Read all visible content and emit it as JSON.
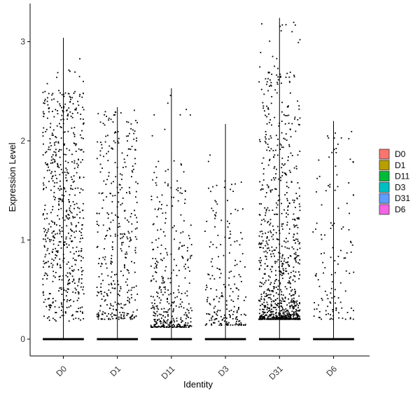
{
  "chart_data": {
    "type": "scatter",
    "subtype": "violin-jitter",
    "xlabel": "Identity",
    "ylabel": "Expression Level",
    "categories": [
      "D0",
      "D1",
      "D11",
      "D3",
      "D31",
      "D6"
    ],
    "yticks": [
      0,
      1,
      2,
      3
    ],
    "ylim": [
      -0.18,
      3.25
    ],
    "grid": false,
    "legend": {
      "position": "right",
      "entries": [
        {
          "label": "D0",
          "color": "#F8766D"
        },
        {
          "label": "D1",
          "color": "#B79F00"
        },
        {
          "label": "D11",
          "color": "#00BA38"
        },
        {
          "label": "D3",
          "color": "#00BFC4"
        },
        {
          "label": "D31",
          "color": "#619CFF"
        },
        {
          "label": "D6",
          "color": "#F564E3"
        }
      ]
    },
    "series": [
      {
        "category": "D0",
        "max": 3.04,
        "n_points": 620,
        "jitter_width": 0.38,
        "dist": [
          0.18,
          2.5,
          0.0
        ]
      },
      {
        "category": "D1",
        "max": 2.34,
        "n_points": 380,
        "jitter_width": 0.38,
        "dist": [
          0.2,
          2.3,
          0.6
        ]
      },
      {
        "category": "D11",
        "max": 2.53,
        "n_points": 380,
        "jitter_width": 0.38,
        "dist": [
          0.12,
          1.8,
          2.2
        ]
      },
      {
        "category": "D3",
        "max": 2.17,
        "n_points": 210,
        "jitter_width": 0.38,
        "dist": [
          0.14,
          1.6,
          1.4
        ]
      },
      {
        "category": "D31",
        "max": 3.24,
        "n_points": 950,
        "jitter_width": 0.38,
        "dist": [
          0.2,
          2.7,
          1.8
        ]
      },
      {
        "category": "D6",
        "max": 2.2,
        "n_points": 130,
        "jitter_width": 0.38,
        "dist": [
          0.2,
          2.1,
          0.8
        ]
      }
    ],
    "zero_band": true,
    "point_color": "#000000"
  }
}
